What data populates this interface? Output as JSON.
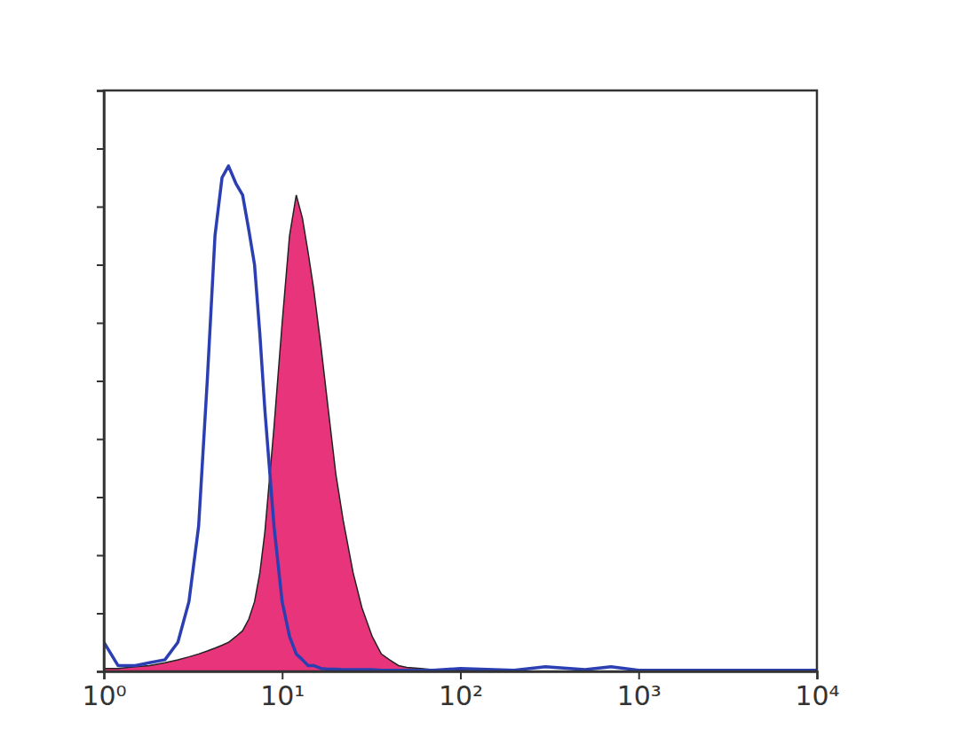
{
  "chart_data": {
    "type": "line",
    "log": "x",
    "grid": false,
    "tick_labels": "x",
    "xlim": [
      1,
      10000
    ],
    "xticks": [
      {
        "value": 1,
        "label": "10⁰"
      },
      {
        "value": 10,
        "label": "10¹"
      },
      {
        "value": 100,
        "label": "10²"
      },
      {
        "value": 1000,
        "label": "10³"
      },
      {
        "value": 10000,
        "label": "10⁴"
      }
    ],
    "ylim": [
      0,
      100
    ],
    "yticks": [
      0,
      10,
      20,
      30,
      40,
      50,
      60,
      70,
      80,
      90,
      100
    ],
    "x": [
      1,
      1.2,
      1.5,
      1.8,
      2.2,
      2.6,
      3,
      3.4,
      3.8,
      4.2,
      4.6,
      5,
      5.5,
      6,
      6.5,
      7,
      7.5,
      8,
      9,
      10,
      11,
      12,
      13,
      14,
      15,
      16.5,
      18,
      20,
      22,
      25,
      28,
      32,
      36,
      40,
      45,
      50,
      60,
      70,
      100,
      200,
      300,
      500,
      700,
      1000,
      10000
    ],
    "series": [
      {
        "type": "area",
        "color": "#e8347a",
        "values": [
          0.5,
          0.5,
          0.8,
          1,
          1.5,
          2,
          2.5,
          3,
          3.5,
          4,
          4.5,
          5,
          6,
          7,
          9,
          12,
          17,
          24,
          42,
          60,
          75,
          82,
          78,
          72,
          66,
          56,
          46,
          34,
          26,
          17,
          11,
          6,
          3,
          2,
          1,
          0.7,
          0.5,
          0.3,
          0.2,
          0,
          0,
          0,
          0,
          0,
          0
        ]
      },
      {
        "type": "line",
        "color": "#2b3fb3",
        "values": [
          5,
          1,
          1,
          1.5,
          2,
          5,
          12,
          25,
          50,
          75,
          85,
          87,
          84,
          82,
          76,
          70,
          58,
          45,
          25,
          12,
          6,
          3,
          2,
          1,
          1,
          0.5,
          0.4,
          0.4,
          0.3,
          0.3,
          0.3,
          0.3,
          0.2,
          0.2,
          0.2,
          0.2,
          0.2,
          0.2,
          0.5,
          0.2,
          0.8,
          0.3,
          0.8,
          0.2,
          0.2
        ]
      }
    ]
  }
}
